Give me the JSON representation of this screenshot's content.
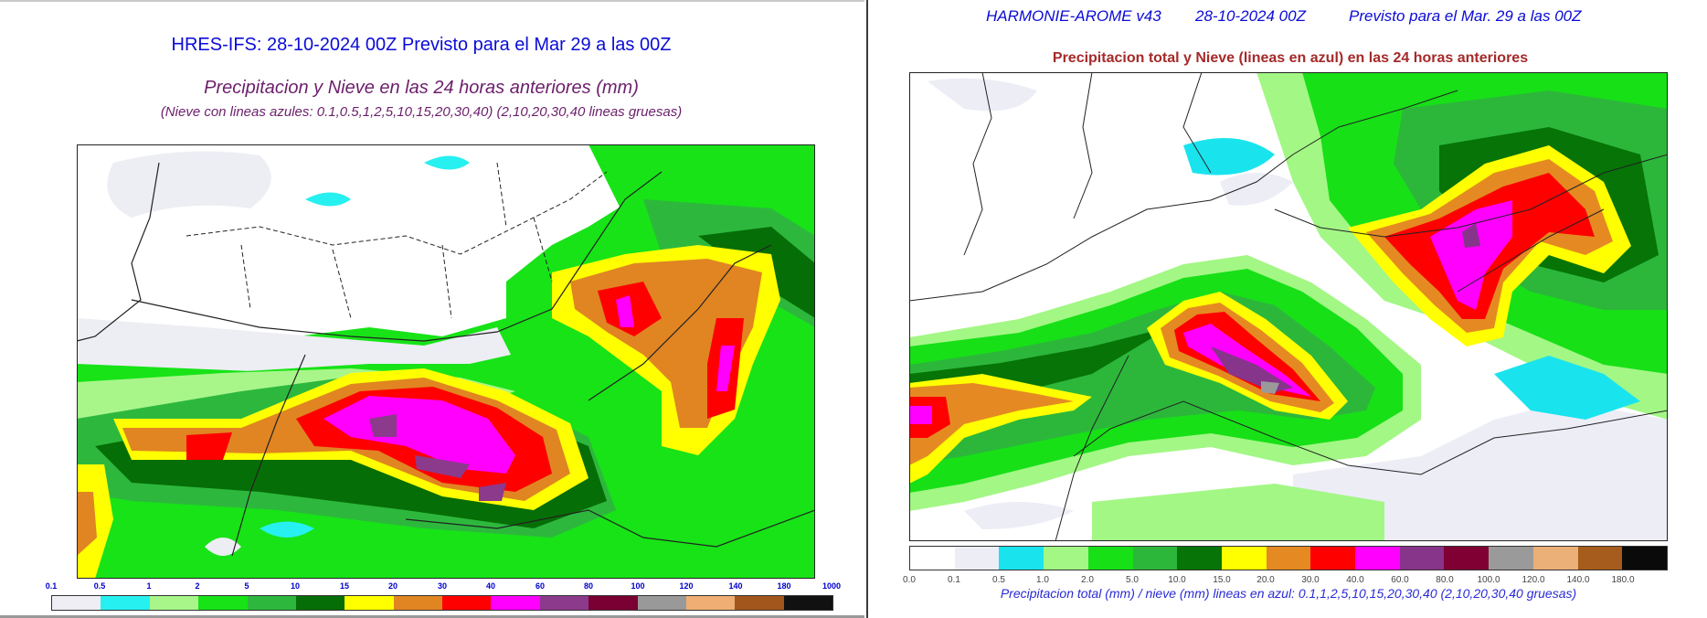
{
  "left": {
    "title": "HRES-IFS: 28-10-2024 00Z Previsto para el Mar 29 a las 00Z",
    "subtitle": "Precipitacion y Nieve en las 24 horas anteriores (mm)",
    "note": "(Nieve con lineas azules: 0.1,0.5,1,2,5,10,15,20,30,40)  (2,10,20,30,40 lineas gruesas)",
    "scale_labels": [
      "0.1",
      "0.5",
      "1",
      "2",
      "5",
      "10",
      "15",
      "20",
      "30",
      "40",
      "60",
      "80",
      "100",
      "120",
      "140",
      "180",
      "1000"
    ],
    "scale_colors": [
      "#eeeef4",
      "#27f0f0",
      "#a8f68a",
      "#17e317",
      "#2db83d",
      "#066e06",
      "#ffff00",
      "#e08522",
      "#ff0000",
      "#ff00ff",
      "#8c3a8c",
      "#7a0033",
      "#999999",
      "#eeae74",
      "#a3561b",
      "#111111"
    ]
  },
  "right": {
    "header_model": "HARMONIE-AROME v43",
    "header_run": "28-10-2024 00Z",
    "header_valid": "Previsto para el Mar. 29 a las 00Z",
    "title": "Precipitacion total y Nieve (lineas en azul) en las 24 horas anteriores",
    "scale_labels": [
      "0.0",
      "0.1",
      "0.5",
      "1.0",
      "2.0",
      "5.0",
      "10.0",
      "15.0",
      "20.0",
      "30.0",
      "40.0",
      "60.0",
      "80.0",
      "100.0",
      "120.0",
      "140.0",
      "180.0"
    ],
    "scale_colors": [
      "#ffffff",
      "#ededf6",
      "#19e4ee",
      "#a3f785",
      "#17e017",
      "#2cb73b",
      "#067406",
      "#ffff00",
      "#e58a22",
      "#ff0000",
      "#ff00ff",
      "#86358a",
      "#800033",
      "#9a9a9a",
      "#ebaf78",
      "#a65c1c",
      "#0a0a0a"
    ],
    "caption": "Precipitacion total (mm) / nieve (mm) lineas en azul: 0.1,1,2,5,10,15,20,30,40  (2,10,20,30,40 gruesas)"
  },
  "icons": {
    "map_left": "precipitation-map",
    "map_right": "precipitation-map"
  }
}
